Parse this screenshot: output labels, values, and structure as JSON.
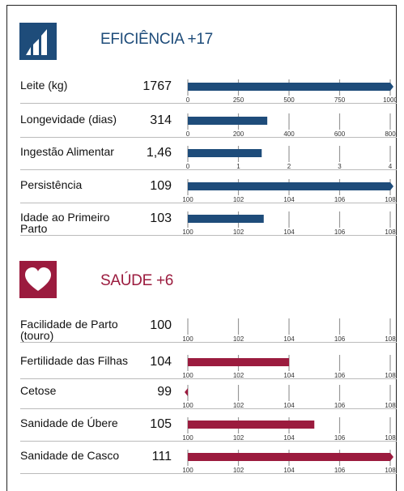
{
  "sections": [
    {
      "title": "EFICIÊNCIA +17",
      "color": "#1e4c7a",
      "rows": [
        {
          "label": "Leite (kg)",
          "value": 1767,
          "xlim": [
            0,
            1000
          ],
          "xticks": [
            0,
            250,
            500,
            750,
            1000
          ]
        },
        {
          "label": "Longevidade (dias)",
          "value": 314,
          "xlim": [
            0,
            800
          ],
          "xticks": [
            0,
            200,
            400,
            600,
            800
          ]
        },
        {
          "label": "Ingestão Alimentar",
          "value": 1.46,
          "value_label": "1,46",
          "xlim": [
            0,
            4
          ],
          "xticks": [
            0,
            1,
            2,
            3,
            4
          ]
        },
        {
          "label": "Persistência",
          "value": 109,
          "xlim": [
            100,
            108
          ],
          "xticks": [
            100,
            102,
            104,
            106,
            108
          ]
        },
        {
          "label": "Idade ao Primeiro Parto",
          "value": 103,
          "xlim": [
            100,
            108
          ],
          "xticks": [
            100,
            102,
            104,
            106,
            108
          ]
        }
      ]
    },
    {
      "title": "SAÚDE +6",
      "color": "#9b1b3e",
      "rows": [
        {
          "label": "Facilidade de Parto (touro)",
          "value": 100,
          "xlim": [
            100,
            108
          ],
          "xticks": [
            100,
            102,
            104,
            106,
            108
          ]
        },
        {
          "label": "Fertilidade das Filhas",
          "value": 104,
          "xlim": [
            100,
            108
          ],
          "xticks": [
            100,
            102,
            104,
            106,
            108
          ]
        },
        {
          "label": "Cetose",
          "value": 99,
          "xlim": [
            100,
            108
          ],
          "xticks": [
            100,
            102,
            104,
            106,
            108
          ]
        },
        {
          "label": "Sanidade de Úbere",
          "value": 105,
          "xlim": [
            100,
            108
          ],
          "xticks": [
            100,
            102,
            104,
            106,
            108
          ]
        },
        {
          "label": "Sanidade de Casco",
          "value": 111,
          "xlim": [
            100,
            108
          ],
          "xticks": [
            100,
            102,
            104,
            106,
            108
          ]
        }
      ]
    }
  ]
}
